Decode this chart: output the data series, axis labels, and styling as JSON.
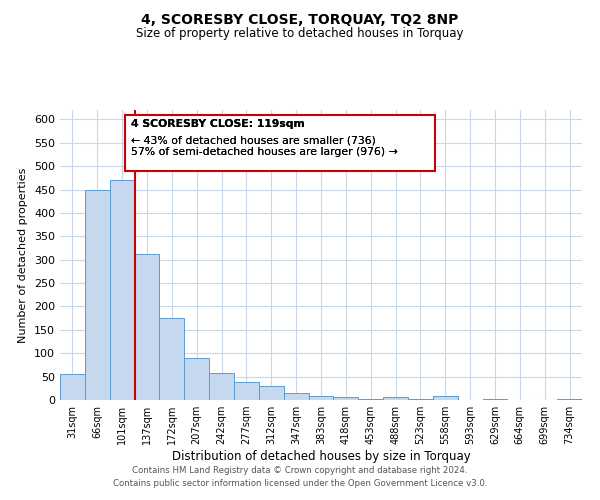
{
  "title": "4, SCORESBY CLOSE, TORQUAY, TQ2 8NP",
  "subtitle": "Size of property relative to detached houses in Torquay",
  "xlabel": "Distribution of detached houses by size in Torquay",
  "ylabel": "Number of detached properties",
  "bin_labels": [
    "31sqm",
    "66sqm",
    "101sqm",
    "137sqm",
    "172sqm",
    "207sqm",
    "242sqm",
    "277sqm",
    "312sqm",
    "347sqm",
    "383sqm",
    "418sqm",
    "453sqm",
    "488sqm",
    "523sqm",
    "558sqm",
    "593sqm",
    "629sqm",
    "664sqm",
    "699sqm",
    "734sqm"
  ],
  "bar_values": [
    55,
    450,
    470,
    312,
    175,
    90,
    57,
    38,
    30,
    15,
    8,
    7,
    3,
    7,
    3,
    9,
    0,
    3,
    0,
    0,
    3
  ],
  "bar_color": "#c5d8ed",
  "bar_edge_color": "#5b9bd5",
  "ylim": [
    0,
    620
  ],
  "yticks": [
    0,
    50,
    100,
    150,
    200,
    250,
    300,
    350,
    400,
    450,
    500,
    550,
    600
  ],
  "property_line_bin": 2,
  "property_line_color": "#cc0000",
  "annotation_title": "4 SCORESBY CLOSE: 119sqm",
  "annotation_line1": "← 43% of detached houses are smaller (736)",
  "annotation_line2": "57% of semi-detached houses are larger (976) →",
  "annotation_box_color": "#ffffff",
  "annotation_border_color": "#cc0000",
  "footer_line1": "Contains HM Land Registry data © Crown copyright and database right 2024.",
  "footer_line2": "Contains public sector information licensed under the Open Government Licence v3.0.",
  "bg_color": "#ffffff",
  "grid_color": "#c8d8e8"
}
